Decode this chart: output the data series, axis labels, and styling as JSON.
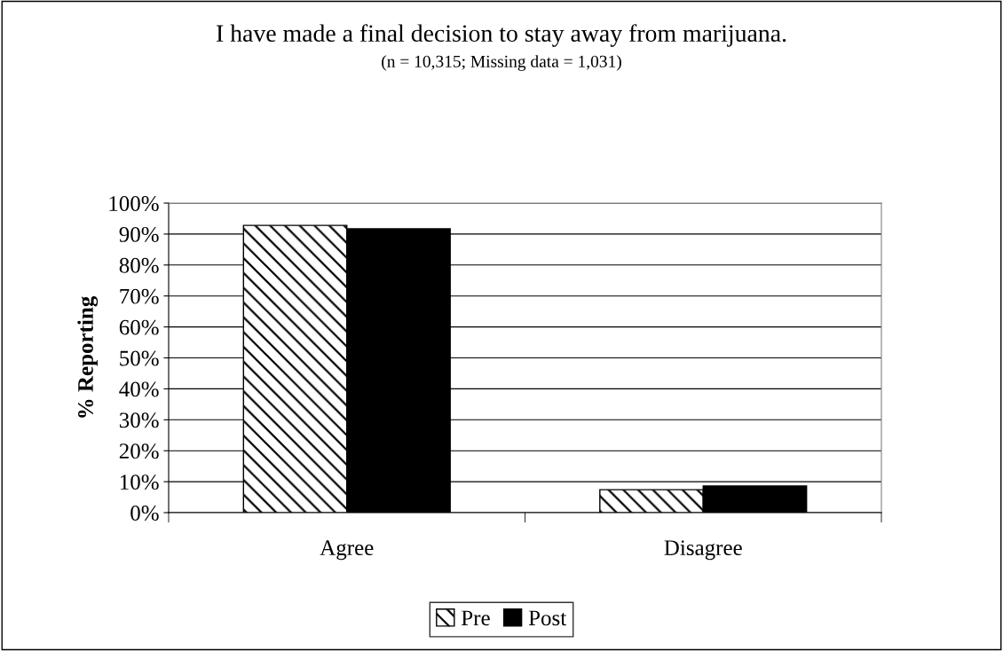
{
  "chart_data": {
    "type": "bar",
    "title": "I have made a final decision to stay away from marijuana.",
    "subtitle": "(n = 10,315; Missing data = 1,031)",
    "ylabel": "% Reporting",
    "categories": [
      "Agree",
      "Disagree"
    ],
    "series": [
      {
        "name": "Pre",
        "color": "#ffffff",
        "values": [
          92.8,
          7.4
        ]
      },
      {
        "name": "Post",
        "color": "#000000",
        "values": [
          91.7,
          8.6
        ]
      }
    ],
    "ylim": [
      0,
      100
    ],
    "yticks": [
      {
        "value": 0,
        "label": "0%"
      },
      {
        "value": 10,
        "label": "10%"
      },
      {
        "value": 20,
        "label": "20%"
      },
      {
        "value": 30,
        "label": "30%"
      },
      {
        "value": 40,
        "label": "40%"
      },
      {
        "value": 50,
        "label": "50%"
      },
      {
        "value": 60,
        "label": "60%"
      },
      {
        "value": 70,
        "label": "70%"
      },
      {
        "value": 80,
        "label": "80%"
      },
      {
        "value": 90,
        "label": "90%"
      },
      {
        "value": 100,
        "label": "100%"
      }
    ],
    "grid": "y",
    "legend": "bottom"
  }
}
